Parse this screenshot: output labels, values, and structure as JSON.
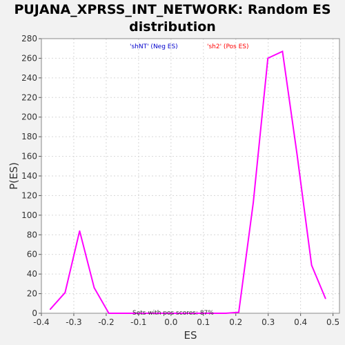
{
  "chart_data": {
    "type": "line",
    "title_line1": "PUJANA_XPRSS_INT_NETWORK: Random ES",
    "title_line2": "distribution",
    "xlabel": "ES",
    "ylabel": "P(ES)",
    "xlim": [
      -0.4,
      0.52
    ],
    "ylim": [
      0,
      280
    ],
    "xticks": [
      -0.4,
      -0.3,
      -0.2,
      -0.1,
      0.0,
      0.1,
      0.2,
      0.3,
      0.4,
      0.5
    ],
    "xtick_labels": [
      "-0.4",
      "-0.3",
      "-0.2",
      "-0.1",
      "0.0",
      "0.1",
      "0.2",
      "0.3",
      "0.4",
      "0.5"
    ],
    "yticks": [
      0,
      20,
      40,
      60,
      80,
      100,
      120,
      140,
      160,
      180,
      200,
      220,
      240,
      260,
      280
    ],
    "ytick_labels": [
      "0",
      "20",
      "40",
      "60",
      "80",
      "100",
      "120",
      "140",
      "160",
      "180",
      "200",
      "220",
      "240",
      "260",
      "280"
    ],
    "grid": true,
    "legend": [
      {
        "label": "'shNT' (Neg ES)",
        "color": "#0000cc"
      },
      {
        "label": "'sh2' (Pos ES)",
        "color": "#ff0000"
      }
    ],
    "annotation": "Sets with pos scores: 87%",
    "series": [
      {
        "name": "Random ES distribution",
        "color": "#ff00ff",
        "x": [
          -0.373,
          -0.327,
          -0.282,
          -0.237,
          -0.192,
          -0.147,
          -0.101,
          -0.056,
          -0.011,
          0.034,
          0.079,
          0.124,
          0.169,
          0.209,
          0.254,
          0.299,
          0.344,
          0.389,
          0.434,
          0.477
        ],
        "y": [
          4,
          21,
          84,
          26,
          0,
          0,
          0,
          0,
          0,
          0,
          0,
          0,
          0,
          1,
          113,
          260,
          267,
          162,
          49,
          15
        ]
      }
    ]
  }
}
